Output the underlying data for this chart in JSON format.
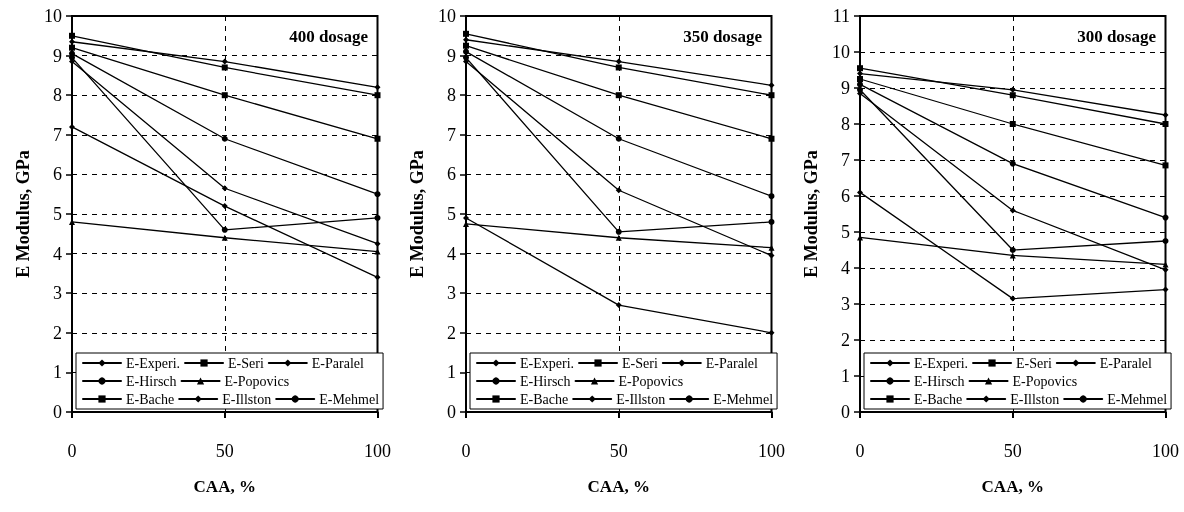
{
  "chart_data": [
    {
      "type": "line",
      "annotations": [
        "400 dosage"
      ],
      "xlabel": "CAA, %",
      "ylabel": "E Modulus, GPa",
      "x": [
        0,
        50,
        100
      ],
      "xlim": [
        0,
        100
      ],
      "xticks": [
        0,
        50,
        100
      ],
      "ylim": [
        0,
        10
      ],
      "yticks": [
        0,
        1,
        2,
        3,
        4,
        5,
        6,
        7,
        8,
        9,
        10
      ],
      "grid": true,
      "legend": "bottom",
      "line_style": "solid",
      "series": [
        {
          "name": "E-Experi.",
          "color": "#000000",
          "marker": "diamond",
          "values": [
            7.2,
            5.2,
            3.4
          ]
        },
        {
          "name": "E-Seri",
          "color": "#000000",
          "marker": "square",
          "values": [
            9.5,
            8.7,
            8.0
          ]
        },
        {
          "name": "E-Paralel",
          "color": "#000000",
          "marker": "diamond",
          "values": [
            8.85,
            5.65,
            4.25
          ]
        },
        {
          "name": "E-Hirsch",
          "color": "#000000",
          "marker": "circle",
          "values": [
            9.05,
            6.9,
            5.5
          ]
        },
        {
          "name": "E-Popovics",
          "color": "#000000",
          "marker": "triangle",
          "values": [
            4.8,
            4.4,
            4.05
          ]
        },
        {
          "name": "E-Bache",
          "color": "#000000",
          "marker": "square",
          "values": [
            9.2,
            8.0,
            6.9
          ]
        },
        {
          "name": "E-Illston",
          "color": "#000000",
          "marker": "diamond",
          "values": [
            9.35,
            8.85,
            8.2
          ]
        },
        {
          "name": "E-Mehmel",
          "color": "#000000",
          "marker": "circle",
          "values": [
            8.95,
            4.6,
            4.9
          ]
        }
      ]
    },
    {
      "type": "line",
      "annotations": [
        "350 dosage"
      ],
      "xlabel": "CAA, %",
      "ylabel": "E Modulus, GPa",
      "x": [
        0,
        50,
        100
      ],
      "xlim": [
        0,
        100
      ],
      "xticks": [
        0,
        50,
        100
      ],
      "ylim": [
        0,
        10
      ],
      "yticks": [
        0,
        1,
        2,
        3,
        4,
        5,
        6,
        7,
        8,
        9,
        10
      ],
      "grid": true,
      "legend": "bottom",
      "line_style": "solid",
      "series": [
        {
          "name": "E-Experi.",
          "color": "#000000",
          "marker": "diamond",
          "values": [
            4.9,
            2.7,
            2.0
          ]
        },
        {
          "name": "E-Seri",
          "color": "#000000",
          "marker": "square",
          "values": [
            9.55,
            8.7,
            8.0
          ]
        },
        {
          "name": "E-Paralel",
          "color": "#000000",
          "marker": "diamond",
          "values": [
            8.85,
            5.6,
            3.95
          ]
        },
        {
          "name": "E-Hirsch",
          "color": "#000000",
          "marker": "circle",
          "values": [
            9.1,
            6.9,
            5.45
          ]
        },
        {
          "name": "E-Popovics",
          "color": "#000000",
          "marker": "triangle",
          "values": [
            4.75,
            4.4,
            4.15
          ]
        },
        {
          "name": "E-Bache",
          "color": "#000000",
          "marker": "square",
          "values": [
            9.25,
            8.0,
            6.9
          ]
        },
        {
          "name": "E-Illston",
          "color": "#000000",
          "marker": "diamond",
          "values": [
            9.4,
            8.85,
            8.25
          ]
        },
        {
          "name": "E-Mehmel",
          "color": "#000000",
          "marker": "circle",
          "values": [
            8.95,
            4.55,
            4.8
          ]
        }
      ]
    },
    {
      "type": "line",
      "annotations": [
        "300 dosage"
      ],
      "xlabel": "CAA, %",
      "ylabel": "E Modulus, GPa",
      "x": [
        0,
        50,
        100
      ],
      "xlim": [
        0,
        100
      ],
      "xticks": [
        0,
        50,
        100
      ],
      "ylim": [
        0,
        11
      ],
      "yticks": [
        0,
        1,
        2,
        3,
        4,
        5,
        6,
        7,
        8,
        9,
        10,
        11
      ],
      "grid": true,
      "legend": "bottom",
      "line_style": "solid",
      "series": [
        {
          "name": "E-Experi.",
          "color": "#000000",
          "marker": "diamond",
          "values": [
            6.1,
            3.15,
            3.4
          ]
        },
        {
          "name": "E-Seri",
          "color": "#000000",
          "marker": "square",
          "values": [
            9.55,
            8.8,
            8.0
          ]
        },
        {
          "name": "E-Paralel",
          "color": "#000000",
          "marker": "diamond",
          "values": [
            8.85,
            5.6,
            3.95
          ]
        },
        {
          "name": "E-Hirsch",
          "color": "#000000",
          "marker": "circle",
          "values": [
            9.1,
            6.9,
            5.4
          ]
        },
        {
          "name": "E-Popovics",
          "color": "#000000",
          "marker": "triangle",
          "values": [
            4.85,
            4.35,
            4.1
          ]
        },
        {
          "name": "E-Bache",
          "color": "#000000",
          "marker": "square",
          "values": [
            9.25,
            8.0,
            6.85
          ]
        },
        {
          "name": "E-Illston",
          "color": "#000000",
          "marker": "diamond",
          "values": [
            9.4,
            8.95,
            8.25
          ]
        },
        {
          "name": "E-Mehmel",
          "color": "#000000",
          "marker": "circle",
          "values": [
            8.95,
            4.5,
            4.75
          ]
        }
      ]
    }
  ]
}
